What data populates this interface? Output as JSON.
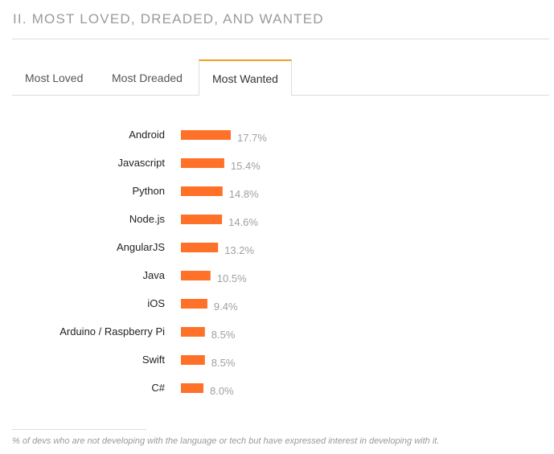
{
  "section": {
    "title": "II. MOST LOVED, DREADED, AND WANTED"
  },
  "tabs": [
    {
      "label": "Most Loved",
      "active": false
    },
    {
      "label": "Most Dreaded",
      "active": false
    },
    {
      "label": "Most Wanted",
      "active": true
    }
  ],
  "chart_data": {
    "type": "bar",
    "orientation": "horizontal",
    "categories": [
      "Android",
      "Javascript",
      "Python",
      "Node.js",
      "AngularJS",
      "Java",
      "iOS",
      "Arduino / Raspberry Pi",
      "Swift",
      "C#"
    ],
    "values": [
      17.7,
      15.4,
      14.8,
      14.6,
      13.2,
      10.5,
      9.4,
      8.5,
      8.5,
      8.0
    ],
    "value_labels": [
      "17.7%",
      "15.4%",
      "14.8%",
      "14.6%",
      "13.2%",
      "10.5%",
      "9.4%",
      "8.5%",
      "8.5%",
      "8.0%"
    ],
    "value_unit": "%",
    "bar_color": "#ff7028",
    "label_color": "#222222",
    "value_label_color": "#a0a0a0",
    "xlim": [
      0,
      17.7
    ],
    "grid": false
  },
  "footnote": "% of devs who are not developing with the language or tech but have expressed interest in developing with it."
}
